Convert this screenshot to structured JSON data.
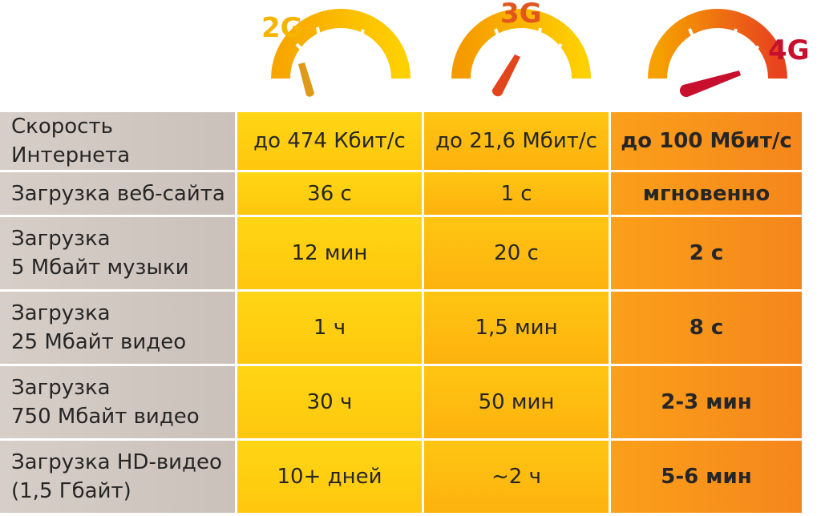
{
  "generations": [
    {
      "label": "2G",
      "color": "#f5b400"
    },
    {
      "label": "3G",
      "color": "#e2561e"
    },
    {
      "label": "4G",
      "color": "#c8102e"
    }
  ],
  "table": {
    "rows": [
      {
        "label": "Скорость Интернета",
        "g2": "до 474 Кбит/с",
        "g3": "до 21,6 Мбит/с",
        "g4": "до 100 Мбит/с"
      },
      {
        "label": "Загрузка веб-сайта",
        "g2": "36 с",
        "g3": "1 с",
        "g4": "мгновенно"
      },
      {
        "label": "Загрузка\n5 Мбайт музыки",
        "g2": "12 мин",
        "g3": "20 с",
        "g4": "2 с"
      },
      {
        "label": "Загрузка\n25 Мбайт видео",
        "g2": "1 ч",
        "g3": "1,5 мин",
        "g4": "8 с"
      },
      {
        "label": "Загрузка\n750 Мбайт видео",
        "g2": "30 ч",
        "g3": "50 мин",
        "g4": "2-3 мин"
      },
      {
        "label": "Загрузка HD-видео\n(1,5 Гбайт)",
        "g2": "10+ дней",
        "g3": "~2 ч",
        "g4": "5-6 мин"
      }
    ]
  }
}
